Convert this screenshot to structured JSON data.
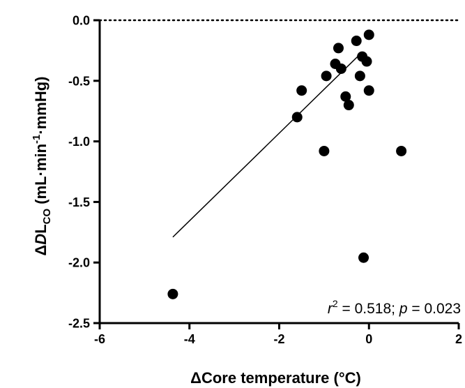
{
  "chart_data": {
    "type": "scatter",
    "xlabel_delta": "Δ",
    "xlabel": "Core temperature (°C)",
    "ylabel": {
      "delta": "Δ",
      "D": "D",
      "L": "L",
      "sub": "CO",
      "unit_open": " (mL·min",
      "sup": "-1",
      "unit_close": "·mmHg)"
    },
    "xlim": [
      -6,
      2
    ],
    "ylim": [
      -2.5,
      0.0
    ],
    "x_ticks": [
      -6,
      -4,
      -2,
      0,
      2
    ],
    "x_tick_labels": [
      "-6",
      "-4",
      "-2",
      "0",
      "2"
    ],
    "y_ticks": [
      0.0,
      -0.5,
      -1.0,
      -1.5,
      -2.0,
      -2.5
    ],
    "y_tick_labels": [
      "0.0",
      "-0.5",
      "-1.0",
      "-1.5",
      "-2.0",
      "-2.5"
    ],
    "reference_line_y": 0.0,
    "points": [
      {
        "x": -4.37,
        "y": -2.26
      },
      {
        "x": -1.6,
        "y": -0.8
      },
      {
        "x": -1.5,
        "y": -0.58
      },
      {
        "x": -1.0,
        "y": -1.08
      },
      {
        "x": -0.95,
        "y": -0.46
      },
      {
        "x": -0.75,
        "y": -0.36
      },
      {
        "x": -0.68,
        "y": -0.23
      },
      {
        "x": -0.62,
        "y": -0.4
      },
      {
        "x": -0.52,
        "y": -0.63
      },
      {
        "x": -0.45,
        "y": -0.7
      },
      {
        "x": -0.28,
        "y": -0.17
      },
      {
        "x": -0.2,
        "y": -0.46
      },
      {
        "x": -0.15,
        "y": -0.3
      },
      {
        "x": -0.12,
        "y": -1.96
      },
      {
        "x": -0.05,
        "y": -0.34
      },
      {
        "x": 0.0,
        "y": -0.12
      },
      {
        "x": 0.0,
        "y": -0.58
      },
      {
        "x": 0.72,
        "y": -1.08
      }
    ],
    "regression_line": {
      "x": [
        -4.37,
        -0.17
      ],
      "y": [
        -1.79,
        -0.27
      ]
    },
    "annotation": {
      "r": "r",
      "r_sup": "2",
      "r_rest": " =  0.518; ",
      "p": "p",
      "p_rest": " = 0.023"
    },
    "grid": false,
    "legend": "none"
  }
}
